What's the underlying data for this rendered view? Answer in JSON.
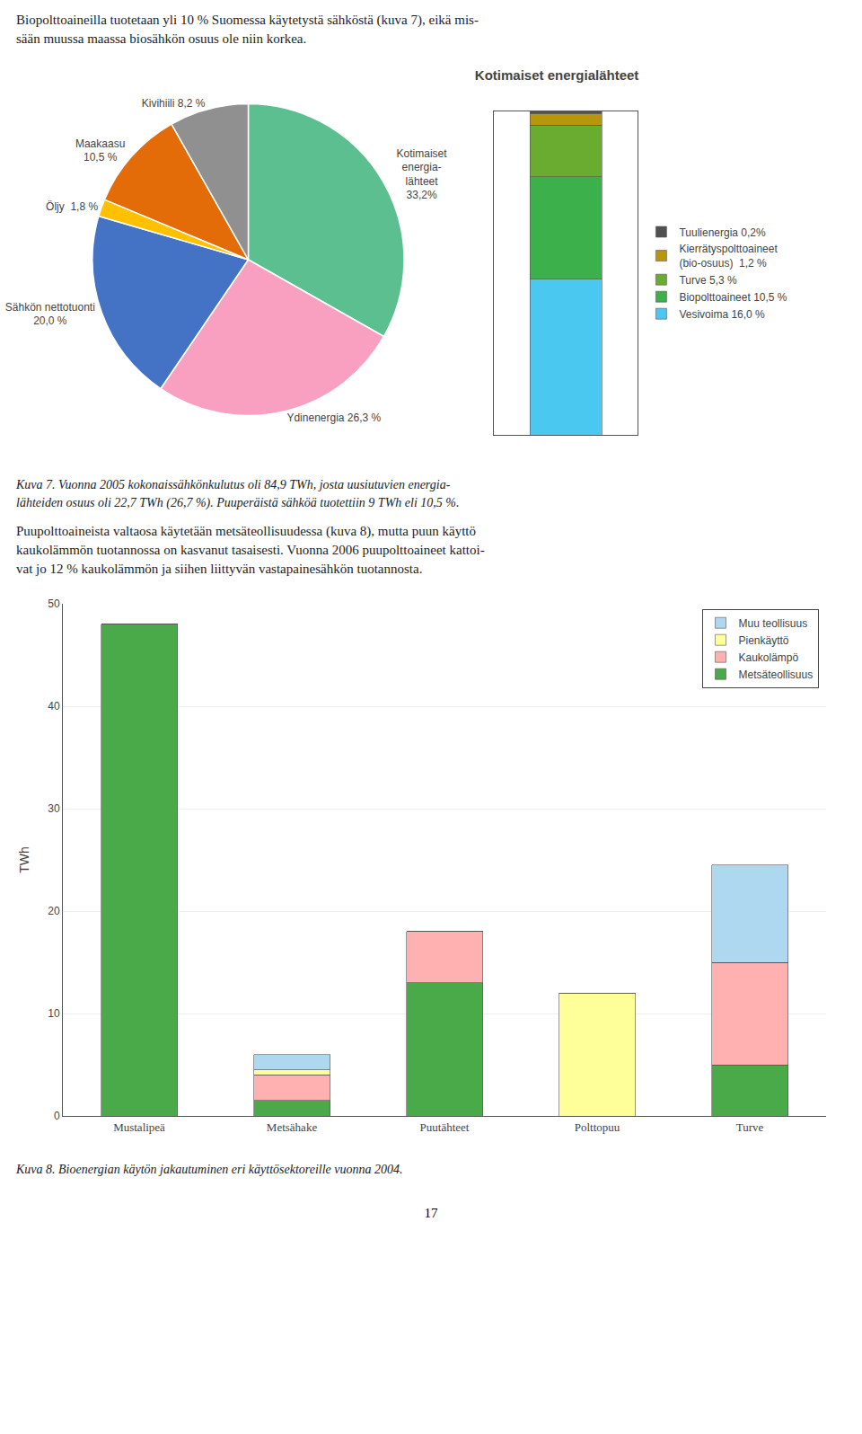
{
  "chart_data": [
    {
      "type": "pie",
      "values": [
        33.2,
        26.3,
        20.0,
        1.8,
        10.5,
        8.2
      ],
      "colors": [
        "#5bbf8f",
        "#f9a0c0",
        "#4472c4",
        "#ffc000",
        "#e36c09",
        "#909090"
      ],
      "data_labels": true,
      "value_labels": [
        "Kotimaiset\nenergia-\nlähteet\n33,2%",
        "Ydinenergia 26,3 %",
        "Sähkön nettotuonti\n20,0 %",
        "Öljy  1,8 %",
        "Maakaasu\n10,5 %",
        "Kivihiili 8,2 %"
      ]
    },
    {
      "type": "bar",
      "title": "Kotimaiset energialähteet",
      "stacked": true,
      "categories": [
        null
      ],
      "series": [
        {
          "name": "Vesivoima 16,0 %",
          "color": "#4bc8f0",
          "values": [
            16.0
          ]
        },
        {
          "name": "Biopolttoaineet 10,5 %",
          "color": "#3cb04a",
          "values": [
            10.5
          ]
        },
        {
          "name": "Turve 5,3 %",
          "color": "#6aac30",
          "values": [
            5.3
          ]
        },
        {
          "name": "Kierrätyspolttoaineet\n(bio-osuus)  1,2 %",
          "color": "#b8960c",
          "values": [
            1.2
          ]
        },
        {
          "name": "Tuulienergia 0,2%",
          "color": "#505050",
          "values": [
            0.2
          ]
        }
      ],
      "ylim": [
        0,
        33.2
      ],
      "tick_labels": false,
      "grid": false,
      "legend": "right"
    },
    {
      "type": "bar",
      "stacked": true,
      "categories": [
        "Mustalipeä",
        "Metsähake",
        "Puutähteet",
        "Polttopuu",
        "Turve"
      ],
      "series": [
        {
          "name": "Metsäteollisuus",
          "color": "#4aaa4a",
          "values": [
            48.0,
            1.5,
            13.0,
            0.0,
            5.0
          ]
        },
        {
          "name": "Kaukolämpö",
          "color": "#ffb0b0",
          "values": [
            0.0,
            2.5,
            5.0,
            0.0,
            10.0
          ]
        },
        {
          "name": "Pienkäyttö",
          "color": "#ffff99",
          "values": [
            0.0,
            0.5,
            0.0,
            12.0,
            0.0
          ]
        },
        {
          "name": "Muu teollisuus",
          "color": "#add8f0",
          "values": [
            0.0,
            1.5,
            0.0,
            0.0,
            9.5
          ]
        }
      ],
      "y_label": "TWh",
      "ylim": [
        0,
        50
      ],
      "yticks": [
        0,
        10,
        20,
        30,
        40,
        50
      ],
      "grid": true,
      "legend": "upper right"
    }
  ],
  "annotations": [
    "Biopolttoaineilla tuotetaan yli 10 % Suomessa käytetystä sähköstä (kuva 7), eikä mis-",
    "sään muussa maassa biosähkön osuus ole niin korkea.",
    "Kuva 7. Vuonna 2005 kokonaissähkönkulutus oli 84,9 TWh, josta uusiutuvien energia-",
    "lähteiden osuus oli 22,7 TWh (26,7 %). Puuperäistä sähköä tuotettiin 9 TWh eli 10,5 %.",
    "Puupolttoaineista valtaosa käytetään metsäteollisuudessa (kuva 8), mutta puun käyttö\nkaukolämmön tuotannossa on kasvanut tasaisesti. Vuonna 2006 puupolttoaineet kattoi-\nvat jo 12 % kaukolämmön ja siihen liittyvän vastapainesähkön tuotannosta.",
    "Kuva 8. Bioenergian käytön jakautuminen eri käyttösektoreille vuonna 2004.",
    "17"
  ]
}
